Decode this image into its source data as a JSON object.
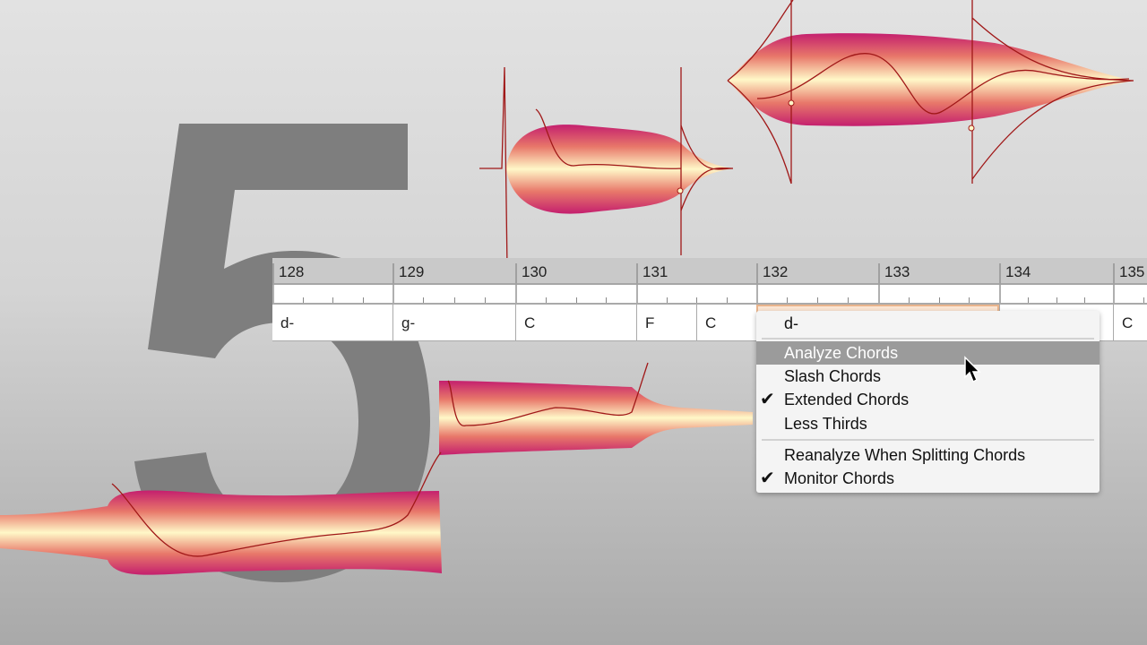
{
  "background_numeral": "5",
  "ruler": {
    "bars": [
      "128",
      "129",
      "130",
      "131",
      "132",
      "133",
      "134",
      "135"
    ]
  },
  "chords": [
    {
      "label": "d-"
    },
    {
      "label": "g-"
    },
    {
      "label": "C"
    },
    {
      "label": "F"
    },
    {
      "label": "C"
    },
    {
      "label": "d-",
      "selected": true
    },
    {
      "label": ""
    },
    {
      "label": "C"
    }
  ],
  "menu": {
    "header": "d-",
    "items": [
      {
        "label": "Analyze Chords",
        "highlighted": true,
        "checked": false
      },
      {
        "label": "Slash Chords",
        "checked": false
      },
      {
        "label": "Extended Chords",
        "checked": true
      },
      {
        "label": "Less Thirds",
        "checked": false
      },
      {
        "label": "Reanalyze When Splitting Chords",
        "checked": false
      },
      {
        "label": "Monitor Chords",
        "checked": true
      }
    ],
    "check_glyph": "✔"
  },
  "colors": {
    "blob_edge": "#c41f6e",
    "blob_center": "#fff8c8",
    "pitch_line": "#a01818",
    "selection": "#e9b48c"
  }
}
